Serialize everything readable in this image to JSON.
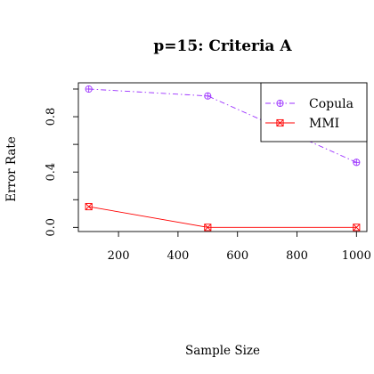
{
  "chart_data": {
    "type": "line",
    "title": "p=15: Criteria A",
    "xlabel": "Sample Size",
    "ylabel": "Error Rate",
    "xlim": [
      65,
      1035
    ],
    "ylim": [
      -0.03,
      1.045
    ],
    "x_ticks": [
      200,
      400,
      600,
      800,
      1000
    ],
    "x_tick_labels": [
      "200",
      "400",
      "600",
      "800",
      "1000"
    ],
    "y_ticks": [
      0.0,
      0.2,
      0.4,
      0.6,
      0.8,
      1.0
    ],
    "y_tick_labels": [
      "0.0",
      "",
      "0.4",
      "",
      "0.8",
      ""
    ],
    "grid": false,
    "legend_position": "top-right",
    "series": [
      {
        "name": "Copula",
        "color": "#9b30ff",
        "line_style": "dash-dot",
        "marker": "circle-plus",
        "x": [
          100,
          500,
          1000
        ],
        "y": [
          1.0,
          0.95,
          0.47
        ]
      },
      {
        "name": "MMI",
        "color": "#ff0000",
        "line_style": "solid",
        "marker": "square-x",
        "x": [
          100,
          500,
          1000
        ],
        "y": [
          0.15,
          0.0,
          0.0
        ]
      }
    ]
  }
}
